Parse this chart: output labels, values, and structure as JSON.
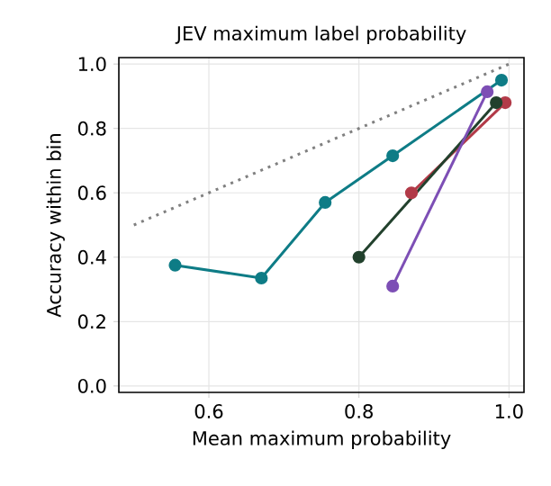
{
  "chart_data": {
    "type": "line",
    "title": "JEV maximum label probability",
    "xlabel": "Mean maximum probability",
    "ylabel": "Accuracy within bin",
    "xlim": [
      0.48,
      1.02
    ],
    "ylim": [
      -0.02,
      1.02
    ],
    "xticks": [
      0.6,
      0.8,
      {
        "value": 1.0,
        "label": "1.0"
      }
    ],
    "yticks": [
      {
        "value": 0.0,
        "label": "0.0"
      },
      0.2,
      0.4,
      0.6,
      0.8,
      {
        "value": 1.0,
        "label": "1.0"
      }
    ],
    "grid": true,
    "marker": "circle",
    "line_style": "solid",
    "series": [
      {
        "color": "#808080",
        "x": [
          0.5,
          1.0
        ],
        "values": [
          0.5,
          1.0
        ],
        "marker": "none",
        "line_style": "dotted"
      },
      {
        "color": "#0e7c86",
        "x": [
          0.555,
          0.67,
          0.755,
          0.845,
          0.99
        ],
        "values": [
          0.375,
          0.335,
          0.57,
          0.715,
          0.95
        ]
      },
      {
        "color": "#b23a48",
        "x": [
          0.87,
          0.995
        ],
        "values": [
          0.6,
          0.88
        ]
      },
      {
        "color": "#22412d",
        "x": [
          0.8,
          0.983
        ],
        "values": [
          0.4,
          0.88
        ]
      },
      {
        "color": "#7d4fb5",
        "x": [
          0.845,
          0.971
        ],
        "values": [
          0.31,
          0.914
        ]
      }
    ]
  }
}
